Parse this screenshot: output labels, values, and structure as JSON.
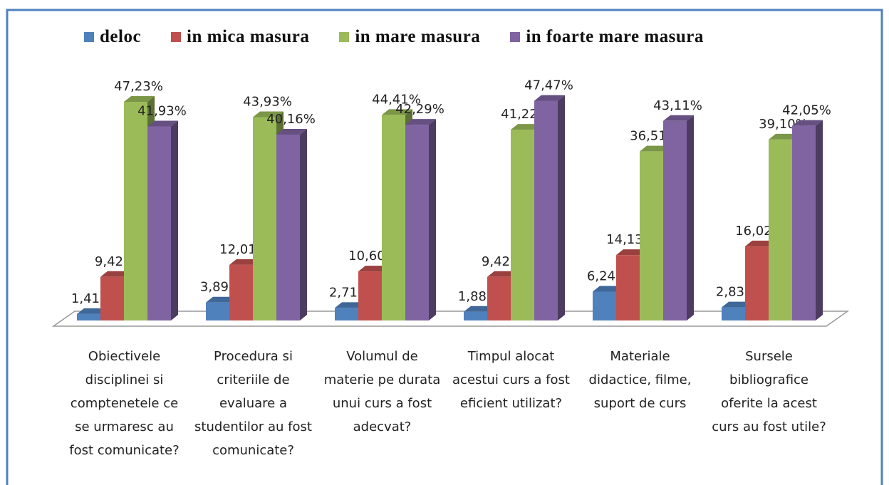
{
  "chart_data": {
    "type": "bar3d",
    "categories": [
      "Obiectivele disciplinei si comptenetele ce se urmaresc au fost comunicate?",
      "Procedura si criteriile de evaluare a studentilor au fost comunicate?",
      "Volumul de materie pe durata unui curs a fost adecvat?",
      "Timpul alocat acestui curs a fost eficient utilizat?",
      "Materiale didactice, filme, suport de curs",
      "Sursele bibliografice oferite la acest curs au fost utile?"
    ],
    "series": [
      {
        "name": "deloc",
        "color": "#4f81bd",
        "values": [
          1.41,
          3.89,
          2.71,
          1.88,
          6.24,
          2.83
        ],
        "value_labels": [
          "1,41%",
          "3,89%",
          "2,71%",
          "1,88%",
          "6,24%",
          "2,83%"
        ]
      },
      {
        "name": "in mica masura",
        "color": "#c0504d",
        "values": [
          9.42,
          12.01,
          10.6,
          9.42,
          14.13,
          16.02
        ],
        "value_labels": [
          "9,42%",
          "12,01%",
          "10,60%",
          "9,42%",
          "14,13%",
          "16,02%"
        ]
      },
      {
        "name": "in mare masura",
        "color": "#9bbb59",
        "values": [
          47.23,
          43.93,
          44.41,
          41.22,
          36.51,
          39.1
        ],
        "value_labels": [
          "47,23%",
          "43,93%",
          "44,41%",
          "41,22%",
          "36,51%",
          "39,10%"
        ]
      },
      {
        "name": "in foarte mare masura",
        "color": "#8064a2",
        "values": [
          41.93,
          40.16,
          42.29,
          47.47,
          43.11,
          42.05
        ],
        "value_labels": [
          "41,93%",
          "40,16%",
          "42,29%",
          "47,47%",
          "43,11%",
          "42,05%"
        ]
      }
    ],
    "ylim": [
      0,
      50
    ],
    "legend": "top"
  }
}
